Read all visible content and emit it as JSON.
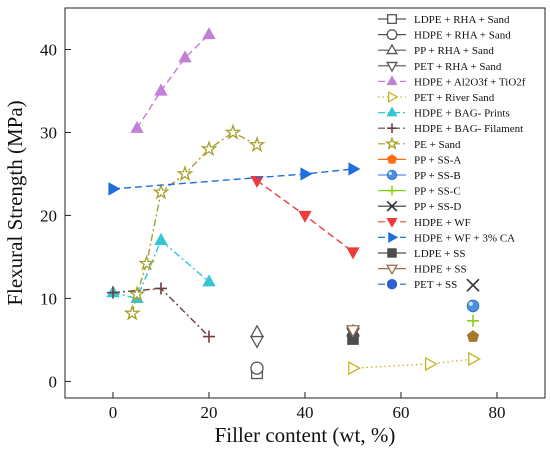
{
  "chart_data": {
    "type": "scatter",
    "xlabel": "Filler content (wt, %)",
    "ylabel": "Flexural Strength (MPa)",
    "xlim": [
      -10,
      90
    ],
    "ylim": [
      -2,
      45
    ],
    "xticks": [
      0,
      20,
      40,
      60,
      80
    ],
    "yticks": [
      0,
      10,
      20,
      30,
      40
    ],
    "grid": false,
    "legend_position": "right",
    "series": [
      {
        "name": "LDPE + RHA + Sand",
        "marker": "square-open",
        "color": "#555555",
        "line": "none",
        "x": [
          30
        ],
        "y": [
          1.0
        ]
      },
      {
        "name": "HDPE + RHA + Sand",
        "marker": "circle-open",
        "color": "#555555",
        "line": "none",
        "x": [
          30
        ],
        "y": [
          1.6
        ]
      },
      {
        "name": "PP + RHA + Sand",
        "marker": "triangle-open",
        "color": "#555555",
        "line": "none",
        "x": [
          30,
          50
        ],
        "y": [
          5.9,
          6.0
        ]
      },
      {
        "name": "PET + RHA + Sand",
        "marker": "triangle-down-open",
        "color": "#555555",
        "line": "none",
        "x": [
          30,
          50
        ],
        "y": [
          4.9,
          5.9
        ]
      },
      {
        "name": "HDPE + Al2O3f + TiO2f",
        "marker": "triangle-filled",
        "color": "#c27fd6",
        "line": "dash",
        "x": [
          5,
          10,
          15,
          20
        ],
        "y": [
          30.5,
          35.0,
          39.0,
          41.8
        ]
      },
      {
        "name": "PET + River Sand",
        "marker": "triangle-right-open",
        "color": "#c6b626",
        "line": "dot",
        "x": [
          50,
          66,
          75
        ],
        "y": [
          1.6,
          2.1,
          2.7
        ]
      },
      {
        "name": "HDPE + BAG- Prints",
        "marker": "triangle-filled",
        "color": "#35c6d3",
        "line": "dashdot",
        "x": [
          0,
          5,
          10,
          20
        ],
        "y": [
          10.7,
          10.0,
          17.0,
          12.0
        ]
      },
      {
        "name": "HDPE + BAG- Filament",
        "marker": "plus",
        "color": "#6d3e3e",
        "line": "dashdot",
        "x": [
          0,
          10,
          20
        ],
        "y": [
          10.7,
          11.2,
          5.4
        ]
      },
      {
        "name": "PE + Sand",
        "marker": "star-open",
        "color": "#a6a02a",
        "line": "dashdot",
        "x": [
          4,
          5,
          7,
          10,
          15,
          20,
          25,
          30
        ],
        "y": [
          8.2,
          10.5,
          14.2,
          22.8,
          25.0,
          28.0,
          30.0,
          28.5
        ]
      },
      {
        "name": "PP + SS-A",
        "marker": "pentagon-filled",
        "color": "#ff6a13",
        "line": "none",
        "x": [],
        "y": []
      },
      {
        "name": "PP + SS-B",
        "marker": "sphere",
        "color": "#4a90e2",
        "line": "none",
        "x": [
          75
        ],
        "y": [
          9.1
        ]
      },
      {
        "name": "PP + SS-C",
        "marker": "plus",
        "color": "#8ccf1a",
        "line": "none",
        "x": [
          75
        ],
        "y": [
          7.3
        ]
      },
      {
        "name": "PP + SS-D",
        "marker": "x",
        "color": "#333333",
        "line": "none",
        "x": [
          75
        ],
        "y": [
          11.6
        ]
      },
      {
        "name": "HDPE + WF",
        "marker": "triangle-down-filled",
        "color": "#ee3b3b",
        "line": "dash",
        "x": [
          30,
          40,
          50
        ],
        "y": [
          24.2,
          20.0,
          15.6
        ]
      },
      {
        "name": "HDPE + WF + 3% CA",
        "marker": "triangle-right-filled",
        "color": "#1e6fdc",
        "line": "dash",
        "x": [
          0,
          40,
          50
        ],
        "y": [
          23.2,
          25.0,
          25.6
        ]
      },
      {
        "name": "LDPE + SS",
        "marker": "square-filled",
        "color": "#4d4d4d",
        "line": "none",
        "x": [
          50
        ],
        "y": [
          5.1
        ]
      },
      {
        "name": "HDPE + SS",
        "marker": "triangle-down-open",
        "color": "#9a6f50",
        "line": "none",
        "x": [
          50
        ],
        "y": [
          6.2
        ]
      },
      {
        "name": "PET + SS",
        "marker": "circle-filled",
        "color": "#2f5fd0",
        "line": "dash",
        "x": [],
        "y": []
      },
      {
        "name": "",
        "marker": "pentagon-filled",
        "color": "#a8782a",
        "line": "none",
        "x": [
          75
        ],
        "y": [
          5.4
        ]
      }
    ]
  }
}
